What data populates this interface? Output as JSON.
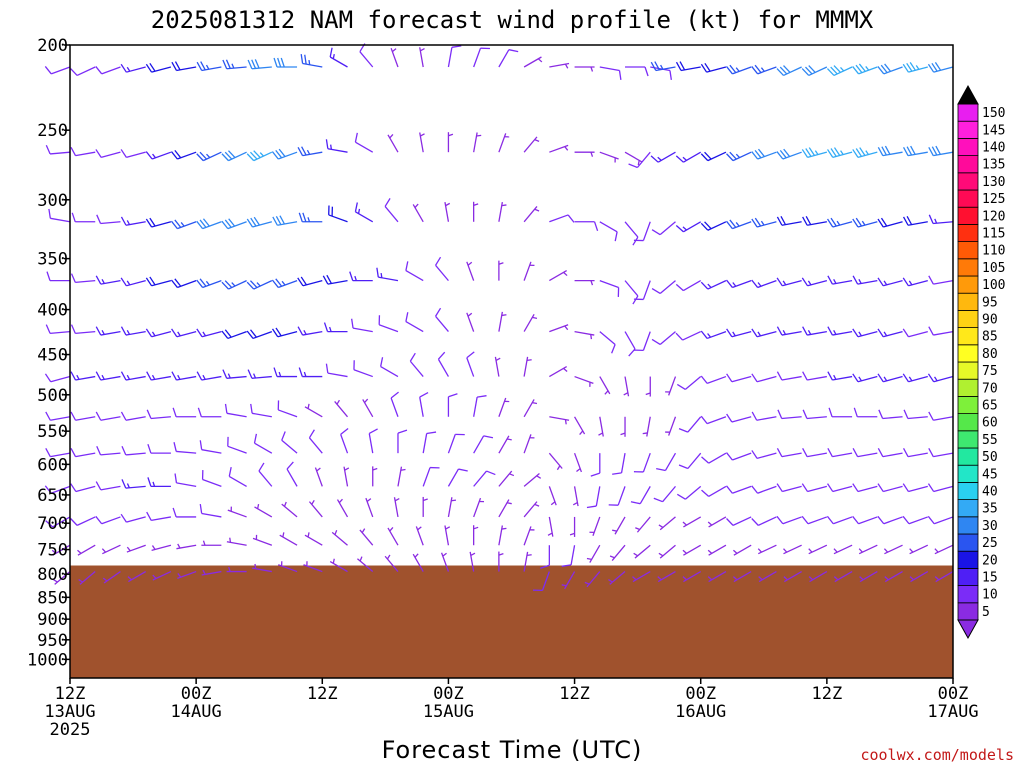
{
  "chart_data": {
    "type": "wind-barb-time-height",
    "title": "2025081312 NAM forecast wind profile (kt) for MMMX",
    "xlabel": "Forecast Time (UTC)",
    "credit": "coolwx.com/models",
    "y_axis": {
      "scale": "log-pressure",
      "range": [
        1050,
        200
      ],
      "ticks": [
        "200",
        "250",
        "300",
        "350",
        "400",
        "450",
        "500",
        "550",
        "600",
        "650",
        "700",
        "750",
        "800",
        "850",
        "900",
        "950",
        "1000"
      ]
    },
    "x_axis": {
      "range_hours": [
        0,
        84
      ],
      "tick_labels": [
        {
          "hour": 0,
          "line1": "12Z",
          "line2": "13AUG",
          "line3": "2025"
        },
        {
          "hour": 12,
          "line1": "00Z",
          "line2": "14AUG",
          "line3": ""
        },
        {
          "hour": 24,
          "line1": "12Z",
          "line2": "",
          "line3": ""
        },
        {
          "hour": 36,
          "line1": "00Z",
          "line2": "15AUG",
          "line3": ""
        },
        {
          "hour": 48,
          "line1": "12Z",
          "line2": "",
          "line3": ""
        },
        {
          "hour": 60,
          "line1": "00Z",
          "line2": "16AUG",
          "line3": ""
        },
        {
          "hour": 72,
          "line1": "12Z",
          "line2": "",
          "line3": ""
        },
        {
          "hour": 84,
          "line1": "00Z",
          "line2": "17AUG",
          "line3": ""
        }
      ]
    },
    "ground_color": "#a0522d",
    "surface_pressure_hpa": 782,
    "colorbar": {
      "levels": [
        5,
        10,
        15,
        20,
        25,
        30,
        35,
        40,
        45,
        50,
        55,
        60,
        65,
        70,
        75,
        80,
        85,
        90,
        95,
        100,
        105,
        110,
        115,
        120,
        125,
        130,
        135,
        140,
        145,
        150
      ],
      "colors": [
        "#8a2be2",
        "#7b2cf7",
        "#4f1ff5",
        "#1a14e6",
        "#2a55f0",
        "#2f86f2",
        "#33aaf5",
        "#2ad0f0",
        "#22e6c8",
        "#22e8a0",
        "#3ee870",
        "#55e84a",
        "#7ef03a",
        "#b0f030",
        "#e6f828",
        "#ffff22",
        "#ffe81a",
        "#ffd214",
        "#ffb80e",
        "#ff9a0a",
        "#ff7a08",
        "#ff5a06",
        "#ff3010",
        "#ff1030",
        "#ff0a55",
        "#ff0a78",
        "#ff0a9a",
        "#ff10bc",
        "#ff20dd",
        "#e81ef0"
      ]
    },
    "levels_hpa": [
      200,
      250,
      300,
      350,
      400,
      450,
      500,
      550,
      600,
      650,
      700,
      750
    ],
    "series": [
      {
        "level": 200,
        "dir": [
          250,
          245,
          250,
          255,
          255,
          260,
          260,
          265,
          265,
          270,
          280,
          300,
          320,
          340,
          350,
          10,
          20,
          30,
          60,
          80,
          90,
          100,
          90,
          100,
          260,
          260,
          255,
          250,
          250,
          245,
          245,
          245,
          250,
          250,
          255,
          255
        ],
        "spd": [
          10,
          10,
          10,
          15,
          20,
          20,
          25,
          25,
          30,
          30,
          25,
          15,
          10,
          5,
          5,
          10,
          10,
          10,
          5,
          5,
          5,
          10,
          10,
          10,
          25,
          20,
          20,
          25,
          25,
          30,
          30,
          35,
          35,
          30,
          35,
          30
        ]
      },
      {
        "level": 250,
        "dir": [
          265,
          260,
          255,
          255,
          250,
          250,
          245,
          245,
          245,
          250,
          260,
          280,
          300,
          330,
          350,
          0,
          10,
          20,
          40,
          70,
          90,
          110,
          120,
          220,
          240,
          240,
          245,
          245,
          250,
          250,
          255,
          255,
          255,
          260,
          260,
          260
        ],
        "spd": [
          10,
          10,
          10,
          10,
          15,
          20,
          25,
          30,
          35,
          30,
          25,
          15,
          10,
          5,
          5,
          5,
          5,
          5,
          5,
          5,
          5,
          5,
          5,
          10,
          15,
          15,
          20,
          25,
          30,
          30,
          35,
          35,
          35,
          30,
          30,
          30
        ]
      },
      {
        "level": 300,
        "dir": [
          280,
          270,
          265,
          260,
          255,
          250,
          250,
          250,
          255,
          260,
          270,
          290,
          300,
          320,
          330,
          350,
          0,
          10,
          40,
          70,
          90,
          120,
          140,
          200,
          230,
          240,
          245,
          250,
          255,
          260,
          260,
          255,
          255,
          255,
          260,
          265
        ],
        "spd": [
          10,
          10,
          10,
          15,
          20,
          25,
          30,
          30,
          30,
          30,
          25,
          20,
          15,
          10,
          5,
          5,
          5,
          5,
          5,
          10,
          10,
          10,
          10,
          10,
          10,
          15,
          20,
          25,
          25,
          20,
          20,
          25,
          25,
          20,
          20,
          15
        ]
      },
      {
        "level": 350,
        "dir": [
          270,
          265,
          260,
          255,
          255,
          250,
          250,
          245,
          245,
          250,
          255,
          260,
          270,
          280,
          300,
          320,
          340,
          0,
          20,
          60,
          90,
          110,
          140,
          200,
          230,
          240,
          245,
          250,
          250,
          255,
          255,
          260,
          260,
          255,
          255,
          260
        ],
        "spd": [
          10,
          10,
          15,
          15,
          20,
          20,
          25,
          25,
          25,
          25,
          20,
          20,
          15,
          15,
          10,
          10,
          5,
          5,
          5,
          5,
          5,
          10,
          10,
          10,
          10,
          10,
          15,
          15,
          15,
          15,
          15,
          15,
          15,
          15,
          15,
          10
        ]
      },
      {
        "level": 400,
        "dir": [
          265,
          265,
          260,
          260,
          255,
          255,
          255,
          250,
          250,
          255,
          260,
          270,
          280,
          290,
          300,
          320,
          340,
          10,
          30,
          70,
          100,
          130,
          150,
          200,
          230,
          245,
          250,
          255,
          255,
          260,
          260,
          260,
          255,
          255,
          255,
          260
        ],
        "spd": [
          10,
          10,
          15,
          15,
          15,
          15,
          15,
          20,
          20,
          20,
          15,
          15,
          10,
          10,
          10,
          10,
          5,
          5,
          5,
          5,
          5,
          10,
          10,
          10,
          10,
          10,
          15,
          15,
          15,
          15,
          15,
          15,
          15,
          15,
          10,
          10
        ]
      },
      {
        "level": 450,
        "dir": [
          255,
          260,
          260,
          260,
          260,
          260,
          260,
          265,
          265,
          270,
          270,
          280,
          290,
          300,
          320,
          330,
          340,
          350,
          10,
          60,
          110,
          150,
          170,
          180,
          200,
          230,
          250,
          255,
          255,
          260,
          260,
          260,
          255,
          255,
          255,
          255
        ],
        "spd": [
          10,
          15,
          15,
          15,
          15,
          15,
          15,
          15,
          15,
          15,
          15,
          10,
          10,
          10,
          10,
          10,
          10,
          5,
          5,
          5,
          5,
          5,
          5,
          5,
          5,
          10,
          10,
          10,
          10,
          10,
          10,
          15,
          15,
          15,
          15,
          15
        ]
      },
      {
        "level": 500,
        "dir": [
          260,
          260,
          260,
          260,
          265,
          270,
          270,
          280,
          280,
          290,
          300,
          320,
          330,
          340,
          350,
          0,
          10,
          20,
          30,
          100,
          150,
          170,
          180,
          190,
          200,
          220,
          250,
          255,
          260,
          265,
          265,
          270,
          270,
          265,
          265,
          260
        ],
        "spd": [
          10,
          10,
          10,
          10,
          10,
          10,
          10,
          10,
          10,
          10,
          5,
          5,
          5,
          10,
          10,
          10,
          10,
          5,
          5,
          5,
          5,
          5,
          5,
          5,
          5,
          10,
          10,
          10,
          10,
          10,
          10,
          10,
          10,
          10,
          10,
          10
        ]
      },
      {
        "level": 550,
        "dir": [
          260,
          260,
          265,
          265,
          270,
          275,
          280,
          290,
          300,
          310,
          320,
          340,
          350,
          0,
          10,
          20,
          30,
          30,
          20,
          140,
          160,
          180,
          190,
          200,
          210,
          220,
          240,
          250,
          255,
          260,
          260,
          260,
          260,
          260,
          260,
          260
        ],
        "spd": [
          10,
          10,
          10,
          10,
          10,
          10,
          10,
          10,
          10,
          10,
          10,
          10,
          10,
          10,
          10,
          10,
          10,
          5,
          5,
          5,
          5,
          10,
          10,
          10,
          10,
          10,
          10,
          10,
          10,
          10,
          10,
          10,
          10,
          10,
          10,
          10
        ]
      },
      {
        "level": 600,
        "dir": [
          250,
          255,
          260,
          265,
          270,
          280,
          290,
          300,
          320,
          330,
          340,
          350,
          0,
          10,
          20,
          30,
          40,
          40,
          50,
          160,
          170,
          190,
          200,
          210,
          220,
          230,
          240,
          250,
          250,
          255,
          255,
          255,
          255,
          255,
          255,
          255
        ],
        "spd": [
          10,
          10,
          10,
          15,
          15,
          10,
          10,
          10,
          10,
          10,
          5,
          5,
          5,
          5,
          10,
          10,
          10,
          5,
          5,
          5,
          5,
          10,
          10,
          10,
          10,
          10,
          10,
          10,
          10,
          10,
          10,
          10,
          10,
          10,
          10,
          10
        ]
      },
      {
        "level": 650,
        "dir": [
          240,
          245,
          250,
          255,
          260,
          270,
          280,
          290,
          300,
          310,
          320,
          330,
          340,
          350,
          0,
          10,
          20,
          30,
          40,
          170,
          180,
          200,
          210,
          220,
          230,
          240,
          240,
          245,
          245,
          250,
          250,
          250,
          250,
          250,
          250,
          250
        ],
        "spd": [
          10,
          10,
          10,
          10,
          10,
          10,
          10,
          5,
          5,
          5,
          5,
          5,
          5,
          5,
          5,
          5,
          5,
          5,
          5,
          5,
          5,
          5,
          5,
          5,
          5,
          5,
          5,
          10,
          10,
          10,
          10,
          10,
          10,
          10,
          10,
          10
        ]
      },
      {
        "level": 700,
        "dir": [
          240,
          240,
          245,
          250,
          255,
          260,
          270,
          280,
          290,
          300,
          300,
          310,
          320,
          330,
          340,
          350,
          0,
          10,
          20,
          180,
          190,
          210,
          220,
          230,
          230,
          240,
          240,
          240,
          245,
          245,
          245,
          245,
          245,
          245,
          245,
          245
        ],
        "spd": [
          5,
          5,
          5,
          5,
          5,
          5,
          5,
          5,
          5,
          5,
          5,
          5,
          5,
          5,
          5,
          5,
          5,
          5,
          5,
          10,
          10,
          5,
          5,
          5,
          5,
          5,
          5,
          5,
          5,
          5,
          5,
          5,
          5,
          5,
          5,
          5
        ]
      },
      {
        "level": 750,
        "dir": [
          230,
          230,
          235,
          240,
          245,
          250,
          260,
          270,
          280,
          290,
          290,
          300,
          310,
          320,
          330,
          340,
          350,
          0,
          10,
          200,
          210,
          220,
          230,
          240,
          240,
          240,
          240,
          240,
          240,
          240,
          240,
          240,
          240,
          240,
          240,
          240
        ],
        "spd": [
          5,
          5,
          5,
          5,
          5,
          5,
          5,
          5,
          5,
          5,
          5,
          5,
          5,
          5,
          5,
          5,
          5,
          5,
          5,
          10,
          5,
          5,
          5,
          5,
          5,
          5,
          5,
          5,
          5,
          5,
          5,
          5,
          5,
          5,
          5,
          5
        ]
      }
    ]
  }
}
